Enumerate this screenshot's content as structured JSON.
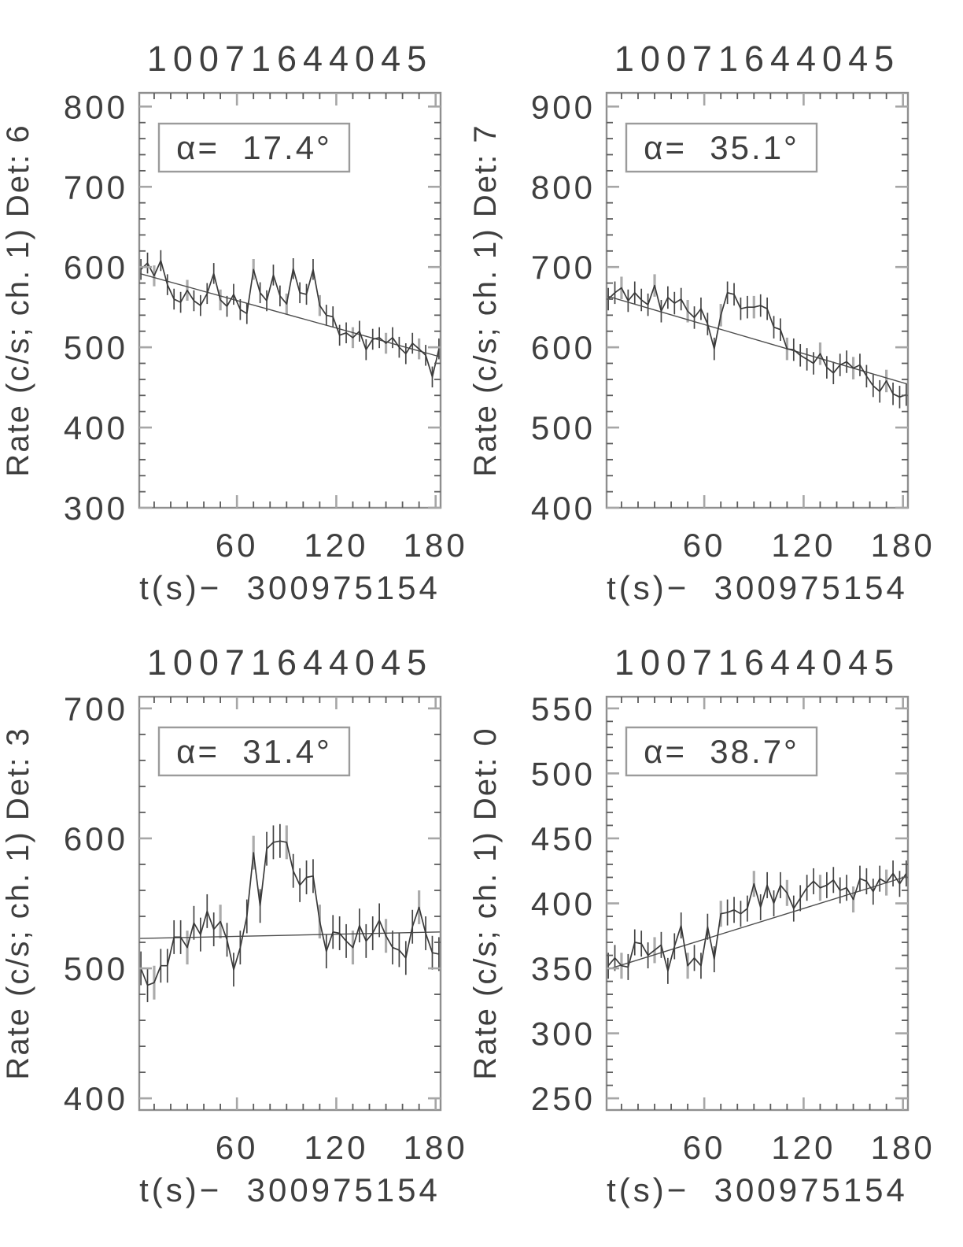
{
  "figure": {
    "description": "Four-panel detector light-curve figure",
    "trigger_id": "10071644045"
  },
  "colors": {
    "background": "#ffffff",
    "frame": "#8f8f8f",
    "tick_major": "#a6a6a6",
    "tick_minor": "#5c5c5c",
    "text": "#3f3f3f",
    "data_line": "#3a3a3a",
    "trend_line": "#4d4d4d",
    "error_bar": "#444444",
    "error_bar_alt": "#ababab",
    "annotation_border": "#9b9b9b"
  },
  "chart_data": [
    {
      "type": "line",
      "panel": "det-6",
      "title": "10071644045",
      "ylabel": "Rate (c/s; ch. 1) Det: 6",
      "xlabel": "t(s)−  300975154",
      "annotation": "α=  17.4°",
      "xlim": [
        1,
        183
      ],
      "ylim": [
        300,
        817
      ],
      "x_ticks": [
        60,
        120,
        180
      ],
      "x_minor_step": 10,
      "y_ticks": [
        300,
        400,
        500,
        600,
        700,
        800
      ],
      "y_minor_step": 20,
      "err_halfwidth": 13,
      "legend_position": "none",
      "grid": false,
      "x": [
        2,
        6,
        10,
        14,
        18,
        22,
        26,
        30,
        34,
        38,
        42,
        46,
        50,
        54,
        58,
        62,
        66,
        70,
        74,
        78,
        82,
        86,
        90,
        94,
        98,
        102,
        106,
        110,
        114,
        118,
        122,
        126,
        130,
        134,
        138,
        142,
        146,
        150,
        154,
        158,
        162,
        166,
        170,
        174,
        178,
        182
      ],
      "y": [
        597,
        605,
        589,
        608,
        578,
        560,
        556,
        571,
        558,
        552,
        567,
        592,
        559,
        551,
        566,
        547,
        542,
        597,
        568,
        558,
        590,
        564,
        554,
        598,
        568,
        566,
        597,
        552,
        540,
        538,
        515,
        518,
        512,
        520,
        497,
        510,
        512,
        505,
        512,
        500,
        492,
        505,
        498,
        490,
        463,
        498
      ],
      "trend": {
        "x": [
          1,
          183
        ],
        "y": [
          592,
          488
        ]
      }
    },
    {
      "type": "line",
      "panel": "det-7",
      "title": "10071644045",
      "ylabel": "Rate (c/s; ch. 1) Det: 7",
      "xlabel": "t(s)−  300975154",
      "annotation": "α=  35.1°",
      "xlim": [
        1,
        183
      ],
      "ylim": [
        400,
        917
      ],
      "x_ticks": [
        60,
        120,
        180
      ],
      "x_minor_step": 10,
      "y_ticks": [
        400,
        500,
        600,
        700,
        800,
        900
      ],
      "y_minor_step": 20,
      "err_halfwidth": 14,
      "legend_position": "none",
      "grid": false,
      "x": [
        2,
        6,
        10,
        14,
        18,
        22,
        26,
        30,
        34,
        38,
        42,
        46,
        50,
        54,
        58,
        62,
        66,
        70,
        74,
        78,
        82,
        86,
        90,
        94,
        98,
        102,
        106,
        110,
        114,
        118,
        122,
        126,
        130,
        134,
        138,
        142,
        146,
        150,
        154,
        158,
        162,
        166,
        170,
        174,
        178,
        182
      ],
      "y": [
        660,
        668,
        674,
        658,
        668,
        659,
        653,
        677,
        645,
        662,
        655,
        660,
        645,
        637,
        648,
        629,
        598,
        640,
        668,
        666,
        648,
        650,
        650,
        652,
        648,
        625,
        622,
        598,
        597,
        590,
        585,
        580,
        592,
        575,
        568,
        578,
        582,
        574,
        578,
        564,
        552,
        545,
        558,
        542,
        538,
        541
      ],
      "trend": {
        "x": [
          1,
          183
        ],
        "y": [
          664,
          554
        ]
      }
    },
    {
      "type": "line",
      "panel": "det-3",
      "title": "10071644045",
      "ylabel": "Rate (c/s; ch. 1) Det: 3",
      "xlabel": "t(s)−  300975154",
      "annotation": "α=  31.4°",
      "xlim": [
        1,
        183
      ],
      "ylim": [
        391,
        709
      ],
      "x_ticks": [
        60,
        120,
        180
      ],
      "x_minor_step": 10,
      "y_ticks": [
        400,
        500,
        600,
        700
      ],
      "y_minor_step": 20,
      "err_halfwidth": 13,
      "legend_position": "none",
      "grid": false,
      "x": [
        2,
        6,
        10,
        14,
        18,
        22,
        26,
        30,
        34,
        38,
        42,
        46,
        50,
        54,
        58,
        62,
        66,
        70,
        74,
        78,
        82,
        86,
        90,
        94,
        98,
        102,
        106,
        110,
        114,
        118,
        122,
        126,
        130,
        134,
        138,
        142,
        146,
        150,
        154,
        158,
        162,
        166,
        170,
        174,
        178,
        182
      ],
      "y": [
        500,
        487,
        489,
        502,
        502,
        524,
        524,
        516,
        535,
        526,
        544,
        530,
        536,
        522,
        499,
        516,
        540,
        589,
        548,
        592,
        597,
        598,
        597,
        575,
        564,
        570,
        571,
        536,
        513,
        528,
        527,
        521,
        516,
        533,
        521,
        527,
        537,
        525,
        516,
        514,
        508,
        532,
        547,
        527,
        512,
        511
      ],
      "trend": {
        "x": [
          1,
          183
        ],
        "y": [
          523,
          528
        ]
      }
    },
    {
      "type": "line",
      "panel": "det-0",
      "title": "10071644045",
      "ylabel": "Rate (c/s; ch. 1) Det: 0",
      "xlabel": "t(s)−  300975154",
      "annotation": "α=  38.7°",
      "xlim": [
        1,
        183
      ],
      "ylim": [
        241,
        559
      ],
      "x_ticks": [
        60,
        120,
        180
      ],
      "x_minor_step": 10,
      "y_ticks": [
        250,
        300,
        350,
        400,
        450,
        500,
        550
      ],
      "y_minor_step": 10,
      "err_halfwidth": 10,
      "legend_position": "none",
      "grid": false,
      "x": [
        2,
        6,
        10,
        14,
        18,
        22,
        26,
        30,
        34,
        38,
        42,
        46,
        50,
        54,
        58,
        62,
        66,
        70,
        74,
        78,
        82,
        86,
        90,
        94,
        98,
        102,
        106,
        110,
        114,
        118,
        122,
        126,
        130,
        134,
        138,
        142,
        146,
        150,
        154,
        158,
        162,
        166,
        170,
        174,
        178,
        182
      ],
      "y": [
        352,
        358,
        352,
        351,
        370,
        369,
        360,
        364,
        368,
        348,
        367,
        383,
        352,
        358,
        352,
        382,
        357,
        392,
        393,
        395,
        392,
        396,
        415,
        397,
        414,
        400,
        414,
        408,
        396,
        404,
        412,
        417,
        412,
        414,
        418,
        410,
        412,
        403,
        419,
        417,
        409,
        419,
        416,
        423,
        415,
        423
      ],
      "trend": {
        "x": [
          1,
          183
        ],
        "y": [
          349,
          421
        ]
      }
    }
  ]
}
